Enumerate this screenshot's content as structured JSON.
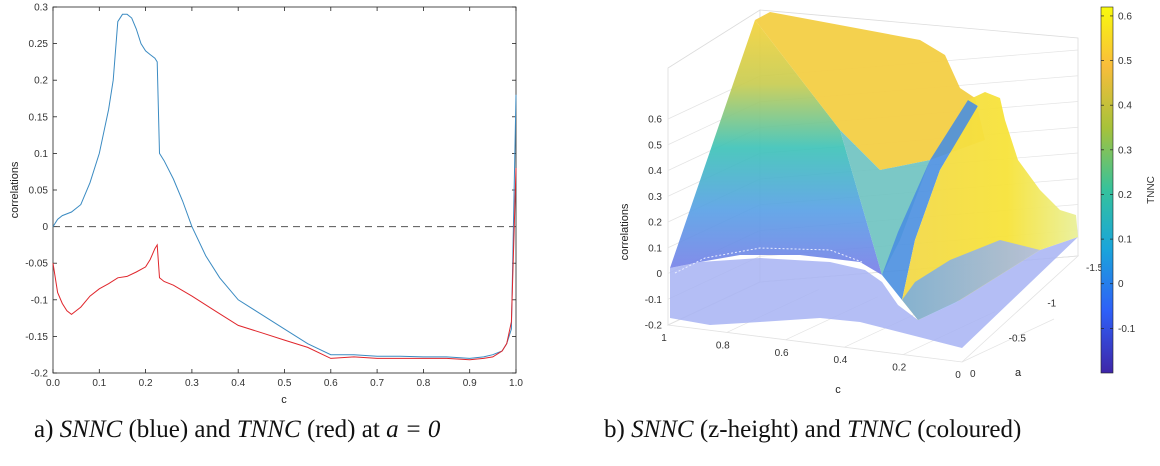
{
  "chart_data": [
    {
      "type": "line",
      "xlabel": "c",
      "ylabel": "correlations",
      "xlim": [
        0,
        1
      ],
      "ylim": [
        -0.2,
        0.3
      ],
      "xticks": [
        "0.0",
        "0.1",
        "0.2",
        "0.3",
        "0.4",
        "0.5",
        "0.6",
        "0.7",
        "0.8",
        "0.9",
        "1.0"
      ],
      "yticks": [
        "-0.2",
        "-0.15",
        "-0.1",
        "-0.05",
        "0",
        "0.05",
        "0.1",
        "0.15",
        "0.2",
        "0.25",
        "0.3"
      ],
      "reference_line": {
        "y": 0,
        "style": "dashed",
        "color": "#555555"
      },
      "grid": false,
      "series": [
        {
          "color": "#3b8bc2",
          "x": [
            0,
            0.01,
            0.02,
            0.04,
            0.06,
            0.08,
            0.1,
            0.12,
            0.13,
            0.14,
            0.15,
            0.16,
            0.17,
            0.18,
            0.19,
            0.2,
            0.21,
            0.22,
            0.225,
            0.23,
            0.24,
            0.26,
            0.28,
            0.3,
            0.33,
            0.36,
            0.4,
            0.45,
            0.5,
            0.55,
            0.6,
            0.65,
            0.7,
            0.75,
            0.8,
            0.85,
            0.9,
            0.93,
            0.95,
            0.97,
            0.98,
            0.99,
            1.0
          ],
          "y": [
            0.0,
            0.01,
            0.015,
            0.02,
            0.03,
            0.06,
            0.1,
            0.16,
            0.2,
            0.28,
            0.29,
            0.29,
            0.285,
            0.27,
            0.25,
            0.24,
            0.235,
            0.23,
            0.225,
            0.1,
            0.09,
            0.065,
            0.035,
            0.0,
            -0.04,
            -0.07,
            -0.1,
            -0.12,
            -0.14,
            -0.16,
            -0.175,
            -0.175,
            -0.177,
            -0.177,
            -0.178,
            -0.178,
            -0.18,
            -0.178,
            -0.175,
            -0.17,
            -0.16,
            -0.14,
            0.18
          ]
        },
        {
          "color": "#e0262c",
          "x": [
            0,
            0.01,
            0.02,
            0.03,
            0.04,
            0.06,
            0.08,
            0.1,
            0.12,
            0.14,
            0.16,
            0.18,
            0.2,
            0.21,
            0.22,
            0.225,
            0.23,
            0.24,
            0.26,
            0.3,
            0.35,
            0.4,
            0.45,
            0.5,
            0.55,
            0.6,
            0.65,
            0.7,
            0.75,
            0.8,
            0.85,
            0.9,
            0.93,
            0.95,
            0.97,
            0.98,
            0.99,
            1.0
          ],
          "y": [
            -0.05,
            -0.09,
            -0.105,
            -0.115,
            -0.12,
            -0.11,
            -0.095,
            -0.085,
            -0.078,
            -0.07,
            -0.068,
            -0.062,
            -0.055,
            -0.045,
            -0.03,
            -0.025,
            -0.07,
            -0.075,
            -0.08,
            -0.095,
            -0.115,
            -0.135,
            -0.145,
            -0.155,
            -0.165,
            -0.18,
            -0.178,
            -0.18,
            -0.18,
            -0.18,
            -0.18,
            -0.182,
            -0.18,
            -0.178,
            -0.17,
            -0.16,
            -0.13,
            0.08
          ]
        }
      ]
    },
    {
      "type": "area",
      "subtype": "3d-surface",
      "xlabel": "c",
      "ylabel": "a",
      "zlabel": "correlations",
      "colorbar_label": "TNNC",
      "xlim": [
        0,
        1
      ],
      "ylim": [
        -1.5,
        0
      ],
      "zlim": [
        -0.2,
        0.6
      ],
      "xticks": [
        "1",
        "0.8",
        "0.6",
        "0.4",
        "0.2",
        "0"
      ],
      "yticks": [
        "0",
        "-0.5",
        "-1",
        "-1.5"
      ],
      "zticks": [
        "-0.2",
        "-0.1",
        "0",
        "0.1",
        "0.2",
        "0.3",
        "0.4",
        "0.5",
        "0.6"
      ],
      "colorbar_ticks": [
        "-0.1",
        "0",
        "0.1",
        "0.2",
        "0.3",
        "0.4",
        "0.5",
        "0.6"
      ],
      "colorbar_range": [
        -0.2,
        0.62
      ],
      "colormap": [
        "#3e26a8",
        "#2e60f8",
        "#1aa5da",
        "#35c29c",
        "#a7c23a",
        "#f9bd3b",
        "#f8fa0d"
      ],
      "grid": true
    }
  ],
  "captions": {
    "a_prefix": "a) ",
    "a_snnc": "SNNC",
    "a_mid": " (blue) and ",
    "a_tnnc": "TNNC",
    "a_mid2": " (red) at ",
    "a_cond": "a = 0",
    "b_prefix": "b) ",
    "b_snnc": "SNNC",
    "b_mid": " (z-height) and ",
    "b_tnnc": "TNNC",
    "b_suffix": " (coloured)"
  }
}
